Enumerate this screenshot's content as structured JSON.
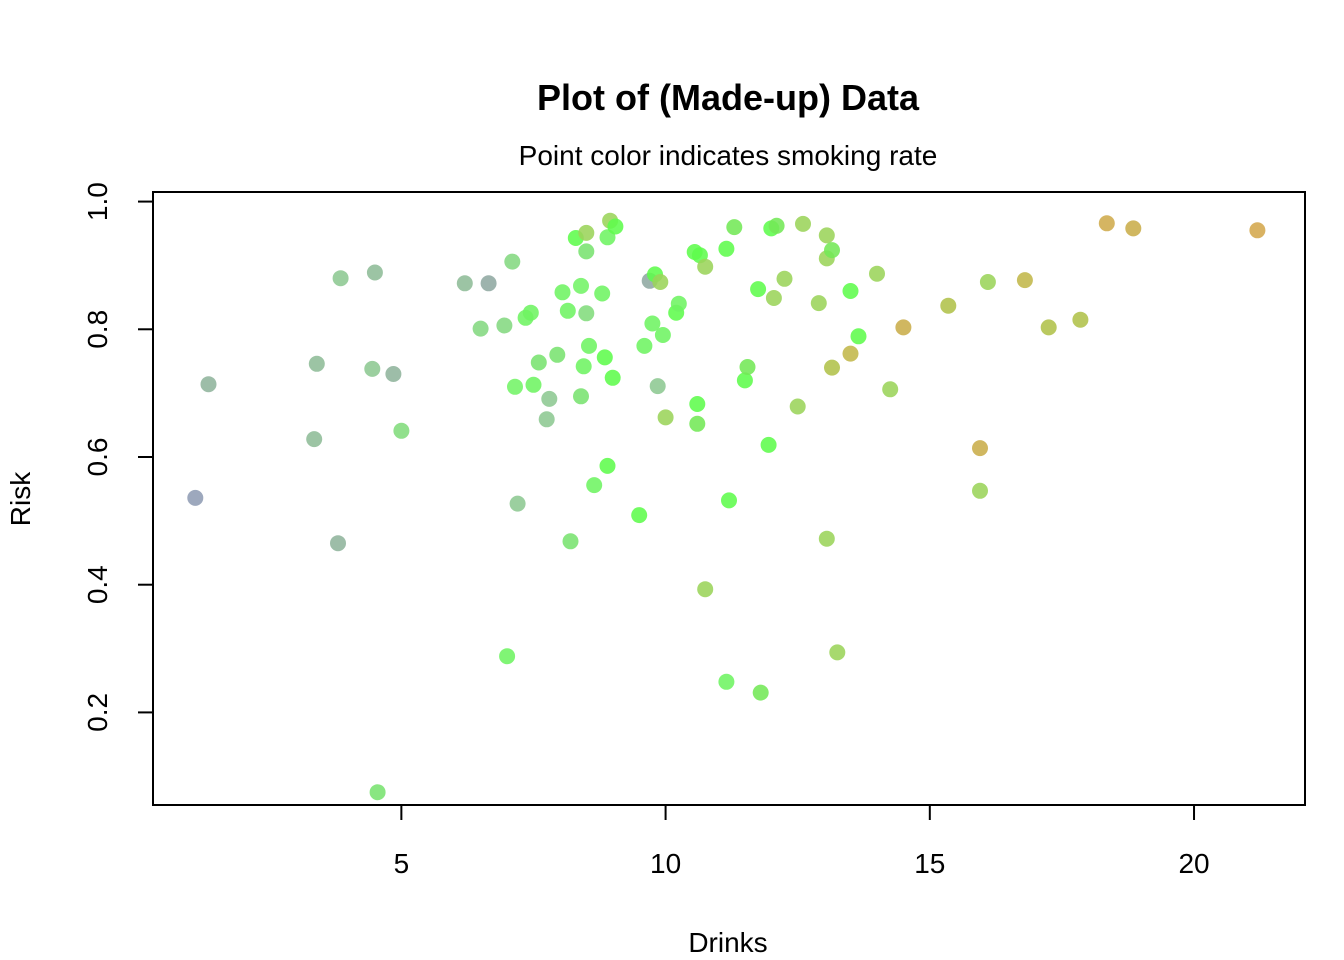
{
  "chart_data": {
    "type": "scatter",
    "title": "Plot of (Made-up) Data",
    "subtitle": "Point color indicates smoking rate",
    "xlabel": "Drinks",
    "ylabel": "Risk",
    "xlim": [
      0.3,
      22.1
    ],
    "ylim": [
      0.055,
      1.015
    ],
    "xticks": [
      5,
      10,
      15,
      20
    ],
    "yticks": [
      0.2,
      0.4,
      0.6,
      0.8,
      1.0
    ],
    "xtick_labels": [
      "5",
      "10",
      "15",
      "20"
    ],
    "ytick_labels": [
      "0.2",
      "0.4",
      "0.6",
      "0.8",
      "1.0"
    ],
    "grid": false,
    "legend": "none",
    "points": [
      {
        "x": 1.1,
        "y": 0.536,
        "color": "#8f9cb4"
      },
      {
        "x": 1.35,
        "y": 0.714,
        "color": "#8fb49c"
      },
      {
        "x": 3.35,
        "y": 0.628,
        "color": "#8ebc97"
      },
      {
        "x": 3.4,
        "y": 0.746,
        "color": "#8ebc97"
      },
      {
        "x": 3.8,
        "y": 0.465,
        "color": "#8fb49c"
      },
      {
        "x": 3.85,
        "y": 0.88,
        "color": "#8dc892"
      },
      {
        "x": 4.45,
        "y": 0.738,
        "color": "#8dc892"
      },
      {
        "x": 4.5,
        "y": 0.889,
        "color": "#8ebc97"
      },
      {
        "x": 4.55,
        "y": 0.075,
        "color": "#79e36f"
      },
      {
        "x": 4.85,
        "y": 0.73,
        "color": "#8fb49c"
      },
      {
        "x": 5.0,
        "y": 0.641,
        "color": "#82dc7c"
      },
      {
        "x": 6.2,
        "y": 0.872,
        "color": "#8ebc97"
      },
      {
        "x": 6.5,
        "y": 0.801,
        "color": "#84d881"
      },
      {
        "x": 6.65,
        "y": 0.872,
        "color": "#8fa8a2"
      },
      {
        "x": 6.95,
        "y": 0.806,
        "color": "#84d881"
      },
      {
        "x": 7.0,
        "y": 0.288,
        "color": "#6ef462"
      },
      {
        "x": 7.1,
        "y": 0.906,
        "color": "#84d881"
      },
      {
        "x": 7.15,
        "y": 0.71,
        "color": "#73f467"
      },
      {
        "x": 7.2,
        "y": 0.527,
        "color": "#8dc892"
      },
      {
        "x": 7.35,
        "y": 0.818,
        "color": "#6ef462"
      },
      {
        "x": 7.45,
        "y": 0.826,
        "color": "#6ef462"
      },
      {
        "x": 7.5,
        "y": 0.713,
        "color": "#6ef462"
      },
      {
        "x": 7.6,
        "y": 0.748,
        "color": "#79e36f"
      },
      {
        "x": 7.75,
        "y": 0.659,
        "color": "#8dc892"
      },
      {
        "x": 7.8,
        "y": 0.691,
        "color": "#8dc892"
      },
      {
        "x": 7.95,
        "y": 0.76,
        "color": "#79e36f"
      },
      {
        "x": 8.05,
        "y": 0.858,
        "color": "#6ef462"
      },
      {
        "x": 8.15,
        "y": 0.829,
        "color": "#6ef462"
      },
      {
        "x": 8.2,
        "y": 0.468,
        "color": "#79e36f"
      },
      {
        "x": 8.3,
        "y": 0.943,
        "color": "#5efc4c"
      },
      {
        "x": 8.4,
        "y": 0.868,
        "color": "#73f467"
      },
      {
        "x": 8.4,
        "y": 0.695,
        "color": "#79e36f"
      },
      {
        "x": 8.45,
        "y": 0.742,
        "color": "#6ef462"
      },
      {
        "x": 8.5,
        "y": 0.951,
        "color": "#9bd45a"
      },
      {
        "x": 8.5,
        "y": 0.825,
        "color": "#82dc7c"
      },
      {
        "x": 8.5,
        "y": 0.922,
        "color": "#79e36f"
      },
      {
        "x": 8.55,
        "y": 0.774,
        "color": "#6ef462"
      },
      {
        "x": 8.65,
        "y": 0.556,
        "color": "#6ef462"
      },
      {
        "x": 8.8,
        "y": 0.856,
        "color": "#6ef462"
      },
      {
        "x": 8.85,
        "y": 0.756,
        "color": "#5efc4c"
      },
      {
        "x": 8.9,
        "y": 0.944,
        "color": "#6ef462"
      },
      {
        "x": 8.9,
        "y": 0.586,
        "color": "#5efc4c"
      },
      {
        "x": 8.95,
        "y": 0.97,
        "color": "#9bd45a"
      },
      {
        "x": 9.0,
        "y": 0.724,
        "color": "#5efc4c"
      },
      {
        "x": 9.05,
        "y": 0.961,
        "color": "#5efc4c"
      },
      {
        "x": 9.5,
        "y": 0.509,
        "color": "#5efc4c"
      },
      {
        "x": 9.6,
        "y": 0.774,
        "color": "#6ef462"
      },
      {
        "x": 9.7,
        "y": 0.876,
        "color": "#8fa8a2"
      },
      {
        "x": 9.75,
        "y": 0.809,
        "color": "#6ef462"
      },
      {
        "x": 9.8,
        "y": 0.886,
        "color": "#5efc4c"
      },
      {
        "x": 9.85,
        "y": 0.711,
        "color": "#8dc892"
      },
      {
        "x": 9.9,
        "y": 0.874,
        "color": "#9bd45a"
      },
      {
        "x": 9.95,
        "y": 0.791,
        "color": "#6ef462"
      },
      {
        "x": 10.0,
        "y": 0.662,
        "color": "#9bd45a"
      },
      {
        "x": 10.2,
        "y": 0.826,
        "color": "#5efc4c"
      },
      {
        "x": 10.25,
        "y": 0.84,
        "color": "#6ef462"
      },
      {
        "x": 10.55,
        "y": 0.921,
        "color": "#5efc4c"
      },
      {
        "x": 10.6,
        "y": 0.683,
        "color": "#5efc4c"
      },
      {
        "x": 10.6,
        "y": 0.652,
        "color": "#73e857"
      },
      {
        "x": 10.65,
        "y": 0.916,
        "color": "#5efc4c"
      },
      {
        "x": 10.75,
        "y": 0.898,
        "color": "#9bd45a"
      },
      {
        "x": 10.75,
        "y": 0.393,
        "color": "#9bd45a"
      },
      {
        "x": 11.15,
        "y": 0.926,
        "color": "#5efc4c"
      },
      {
        "x": 11.15,
        "y": 0.248,
        "color": "#6ef462"
      },
      {
        "x": 11.2,
        "y": 0.532,
        "color": "#5efc4c"
      },
      {
        "x": 11.3,
        "y": 0.96,
        "color": "#73e857"
      },
      {
        "x": 11.5,
        "y": 0.72,
        "color": "#5efc4c"
      },
      {
        "x": 11.55,
        "y": 0.741,
        "color": "#73e857"
      },
      {
        "x": 11.75,
        "y": 0.863,
        "color": "#5efc4c"
      },
      {
        "x": 11.8,
        "y": 0.231,
        "color": "#73e857"
      },
      {
        "x": 11.95,
        "y": 0.619,
        "color": "#5efc4c"
      },
      {
        "x": 12.0,
        "y": 0.958,
        "color": "#5efc4c"
      },
      {
        "x": 12.05,
        "y": 0.849,
        "color": "#9bd45a"
      },
      {
        "x": 12.1,
        "y": 0.962,
        "color": "#73e857"
      },
      {
        "x": 12.25,
        "y": 0.879,
        "color": "#9bd45a"
      },
      {
        "x": 12.5,
        "y": 0.679,
        "color": "#9bd45a"
      },
      {
        "x": 12.6,
        "y": 0.965,
        "color": "#9bd45a"
      },
      {
        "x": 12.9,
        "y": 0.841,
        "color": "#9bd45a"
      },
      {
        "x": 13.05,
        "y": 0.947,
        "color": "#9bd45a"
      },
      {
        "x": 13.05,
        "y": 0.911,
        "color": "#9bd45a"
      },
      {
        "x": 13.05,
        "y": 0.472,
        "color": "#9bd45a"
      },
      {
        "x": 13.15,
        "y": 0.924,
        "color": "#73e857"
      },
      {
        "x": 13.15,
        "y": 0.74,
        "color": "#b0c24a"
      },
      {
        "x": 13.25,
        "y": 0.294,
        "color": "#9bd45a"
      },
      {
        "x": 13.5,
        "y": 0.86,
        "color": "#5efc4c"
      },
      {
        "x": 13.5,
        "y": 0.762,
        "color": "#c2b74a"
      },
      {
        "x": 13.65,
        "y": 0.789,
        "color": "#5efc4c"
      },
      {
        "x": 14.0,
        "y": 0.887,
        "color": "#9bd45a"
      },
      {
        "x": 14.25,
        "y": 0.706,
        "color": "#9bd45a"
      },
      {
        "x": 14.5,
        "y": 0.803,
        "color": "#c9ad4a"
      },
      {
        "x": 15.35,
        "y": 0.837,
        "color": "#b0c24a"
      },
      {
        "x": 15.95,
        "y": 0.547,
        "color": "#9bd45a"
      },
      {
        "x": 15.95,
        "y": 0.614,
        "color": "#c9ad4a"
      },
      {
        "x": 16.1,
        "y": 0.874,
        "color": "#9bd45a"
      },
      {
        "x": 16.8,
        "y": 0.877,
        "color": "#c2b74a"
      },
      {
        "x": 17.25,
        "y": 0.803,
        "color": "#b0c24a"
      },
      {
        "x": 17.85,
        "y": 0.815,
        "color": "#b0c24a"
      },
      {
        "x": 18.35,
        "y": 0.966,
        "color": "#cfab4c"
      },
      {
        "x": 18.85,
        "y": 0.958,
        "color": "#c9ad4a"
      },
      {
        "x": 21.2,
        "y": 0.955,
        "color": "#d4a74c"
      }
    ]
  }
}
